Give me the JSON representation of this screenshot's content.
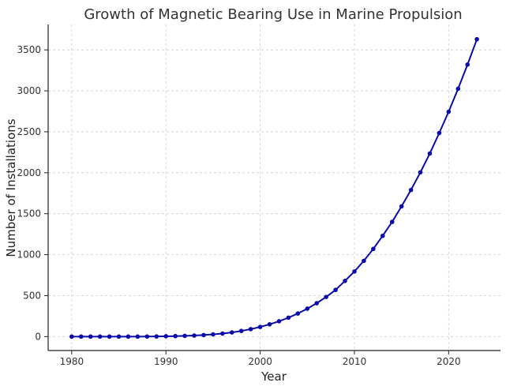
{
  "chart_data": {
    "type": "line",
    "title": "Growth of Magnetic Bearing Use in Marine Propulsion",
    "xlabel": "Year",
    "ylabel": "Number of Installations",
    "xlim": [
      1977.5,
      2025.5
    ],
    "ylim": [
      -170,
      3810
    ],
    "xticks": [
      1980,
      1990,
      2000,
      2010,
      2020
    ],
    "yticks": [
      0,
      500,
      1000,
      1500,
      2000,
      2500,
      3000,
      3500
    ],
    "grid": true,
    "series": [
      {
        "color": "#0b0ba8",
        "marker": "circle",
        "x": [
          1980,
          1981,
          1982,
          1983,
          1984,
          1985,
          1986,
          1987,
          1988,
          1989,
          1990,
          1991,
          1992,
          1993,
          1994,
          1995,
          1996,
          1997,
          1998,
          1999,
          2000,
          2001,
          2002,
          2003,
          2004,
          2005,
          2006,
          2007,
          2008,
          2009,
          2010,
          2011,
          2012,
          2013,
          2014,
          2015,
          2016,
          2017,
          2018,
          2019,
          2020,
          2021,
          2022,
          2023
        ],
        "y": [
          0,
          0,
          0,
          0,
          0,
          0,
          0,
          0,
          1,
          2,
          4,
          6,
          9,
          13,
          19,
          27,
          37,
          51,
          69,
          91,
          118,
          150,
          187,
          231,
          282,
          341,
          408,
          484,
          570,
          680,
          795,
          925,
          1070,
          1230,
          1400,
          1590,
          1790,
          2005,
          2235,
          2485,
          2745,
          3025,
          3320,
          3630
        ]
      }
    ]
  }
}
